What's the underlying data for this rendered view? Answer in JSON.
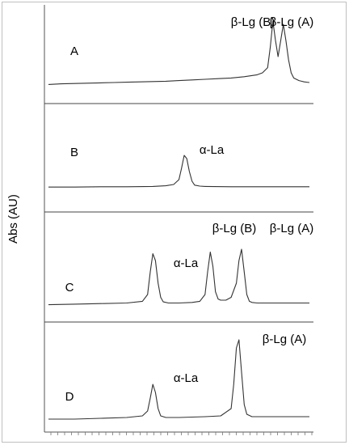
{
  "chart_data": {
    "type": "line",
    "ylabel": "Abs (AU)",
    "xlabel": "",
    "panels": [
      {
        "label": "A",
        "peak_labels": [
          "β-Lg (B)",
          "β-Lg (A)"
        ],
        "series": [
          {
            "x": [
              0,
              5,
              10,
              15,
              20,
              25,
              30,
              35,
              40,
              45,
              50,
              55,
              60,
              65,
              70,
              75,
              80,
              82,
              84,
              85,
              86,
              87,
              88,
              89,
              90,
              91,
              92,
              93,
              94,
              95,
              96,
              97,
              98,
              100
            ],
            "y": [
              0.02,
              0.03,
              0.035,
              0.04,
              0.045,
              0.05,
              0.055,
              0.06,
              0.065,
              0.07,
              0.08,
              0.09,
              0.1,
              0.11,
              0.12,
              0.14,
              0.17,
              0.2,
              0.28,
              0.6,
              1.0,
              0.7,
              0.45,
              0.7,
              0.95,
              0.7,
              0.4,
              0.2,
              0.12,
              0.1,
              0.08,
              0.07,
              0.06,
              0.05
            ]
          }
        ]
      },
      {
        "label": "B",
        "peak_labels": [
          "α-La"
        ],
        "series": [
          {
            "x": [
              0,
              10,
              20,
              30,
              40,
              45,
              48,
              50,
              51,
              52,
              53,
              54,
              55,
              56,
              58,
              60,
              70,
              80,
              90,
              100
            ],
            "y": [
              0.02,
              0.02,
              0.03,
              0.03,
              0.04,
              0.06,
              0.1,
              0.25,
              0.6,
              1.0,
              0.9,
              0.5,
              0.2,
              0.08,
              0.05,
              0.04,
              0.03,
              0.03,
              0.03,
              0.03
            ]
          }
        ]
      },
      {
        "label": "C",
        "peak_labels": [
          "α-La",
          "β-Lg (B)",
          "β-Lg (A)"
        ],
        "series": [
          {
            "x": [
              0,
              10,
              20,
              30,
              36,
              38,
              39,
              40,
              41,
              42,
              43,
              44,
              46,
              50,
              55,
              58,
              60,
              61,
              62,
              63,
              64,
              65,
              66,
              68,
              70,
              72,
              73,
              74,
              75,
              76,
              77,
              78,
              80,
              85,
              90,
              100
            ],
            "y": [
              0.02,
              0.03,
              0.04,
              0.05,
              0.08,
              0.2,
              0.6,
              0.92,
              0.8,
              0.4,
              0.15,
              0.07,
              0.05,
              0.05,
              0.06,
              0.08,
              0.2,
              0.6,
              0.95,
              0.7,
              0.25,
              0.12,
              0.1,
              0.1,
              0.15,
              0.4,
              0.8,
              1.0,
              0.6,
              0.2,
              0.08,
              0.06,
              0.05,
              0.05,
              0.05,
              0.05
            ]
          }
        ]
      },
      {
        "label": "D",
        "peak_labels": [
          "α-La",
          "β-Lg (A)"
        ],
        "series": [
          {
            "x": [
              0,
              10,
              20,
              30,
              36,
              38,
              39,
              40,
              41,
              42,
              43,
              45,
              50,
              60,
              66,
              70,
              71,
              72,
              73,
              74,
              75,
              76,
              78,
              85,
              90,
              100
            ],
            "y": [
              0.02,
              0.02,
              0.03,
              0.04,
              0.06,
              0.12,
              0.28,
              0.45,
              0.35,
              0.15,
              0.06,
              0.04,
              0.04,
              0.05,
              0.06,
              0.15,
              0.45,
              0.9,
              1.0,
              0.6,
              0.2,
              0.08,
              0.05,
              0.05,
              0.05,
              0.05
            ]
          }
        ]
      }
    ]
  }
}
